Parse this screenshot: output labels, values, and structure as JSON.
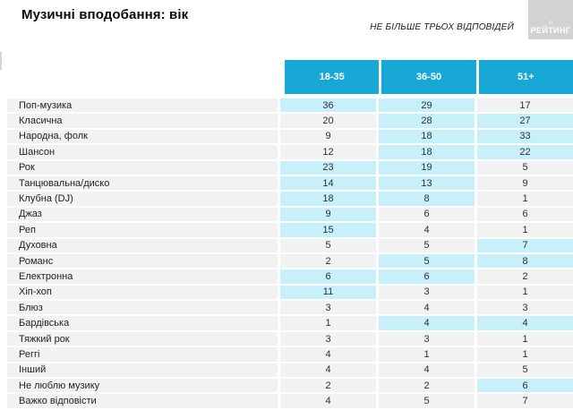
{
  "header": {
    "title": "Музичні вподобання: вік",
    "note": "НЕ БІЛЬШЕ ТРЬОХ ВІДПОВІДЕЙ",
    "logo": "РЕЙТИНГ"
  },
  "colors": {
    "header_bg": "#17a8d6",
    "highlight_bg": "#c8f0fa",
    "row_bg": "#f2f2f2",
    "logo_bg": "#d2d2d2"
  },
  "chart_data": {
    "type": "table",
    "title": "Музичні вподобання: вік",
    "note": "НЕ БІЛЬШЕ ТРЬОХ ВІДПОВІДЕЙ",
    "columns": [
      "18-35",
      "36-50",
      "51+"
    ],
    "highlight_meaning": "light-cyan cell background marks leading values in each row",
    "rows": [
      {
        "label": "Поп-музика",
        "values": [
          36,
          29,
          17
        ],
        "highlight": [
          true,
          true,
          false
        ]
      },
      {
        "label": "Класична",
        "values": [
          20,
          28,
          27
        ],
        "highlight": [
          false,
          true,
          true
        ]
      },
      {
        "label": "Народна, фолк",
        "values": [
          9,
          18,
          33
        ],
        "highlight": [
          false,
          true,
          true
        ]
      },
      {
        "label": "Шансон",
        "values": [
          12,
          18,
          22
        ],
        "highlight": [
          false,
          true,
          true
        ]
      },
      {
        "label": "Рок",
        "values": [
          23,
          19,
          5
        ],
        "highlight": [
          true,
          true,
          false
        ]
      },
      {
        "label": "Танцювальна/диско",
        "values": [
          14,
          13,
          9
        ],
        "highlight": [
          true,
          true,
          false
        ]
      },
      {
        "label": "Клубна (DJ)",
        "values": [
          18,
          8,
          1
        ],
        "highlight": [
          true,
          true,
          false
        ]
      },
      {
        "label": "Джаз",
        "values": [
          9,
          6,
          6
        ],
        "highlight": [
          true,
          false,
          false
        ]
      },
      {
        "label": "Реп",
        "values": [
          15,
          4,
          1
        ],
        "highlight": [
          true,
          false,
          false
        ]
      },
      {
        "label": "Духовна",
        "values": [
          5,
          5,
          7
        ],
        "highlight": [
          false,
          false,
          true
        ]
      },
      {
        "label": "Романс",
        "values": [
          2,
          5,
          8
        ],
        "highlight": [
          false,
          true,
          true
        ]
      },
      {
        "label": "Електронна",
        "values": [
          6,
          6,
          2
        ],
        "highlight": [
          true,
          true,
          false
        ]
      },
      {
        "label": "Хіп-хоп",
        "values": [
          11,
          3,
          1
        ],
        "highlight": [
          true,
          false,
          false
        ]
      },
      {
        "label": "Блюз",
        "values": [
          3,
          4,
          3
        ],
        "highlight": [
          false,
          false,
          false
        ]
      },
      {
        "label": "Бардівська",
        "values": [
          1,
          4,
          4
        ],
        "highlight": [
          false,
          true,
          true
        ]
      },
      {
        "label": "Тяжкий рок",
        "values": [
          3,
          3,
          1
        ],
        "highlight": [
          false,
          false,
          false
        ]
      },
      {
        "label": "Реггі",
        "values": [
          4,
          1,
          1
        ],
        "highlight": [
          false,
          false,
          false
        ]
      },
      {
        "label": "Інший",
        "values": [
          4,
          4,
          5
        ],
        "highlight": [
          false,
          false,
          false
        ]
      },
      {
        "label": "Не люблю музику",
        "values": [
          2,
          2,
          6
        ],
        "highlight": [
          false,
          false,
          true
        ]
      },
      {
        "label": "Важко відповісти",
        "values": [
          4,
          5,
          7
        ],
        "highlight": [
          false,
          false,
          false
        ]
      }
    ]
  }
}
